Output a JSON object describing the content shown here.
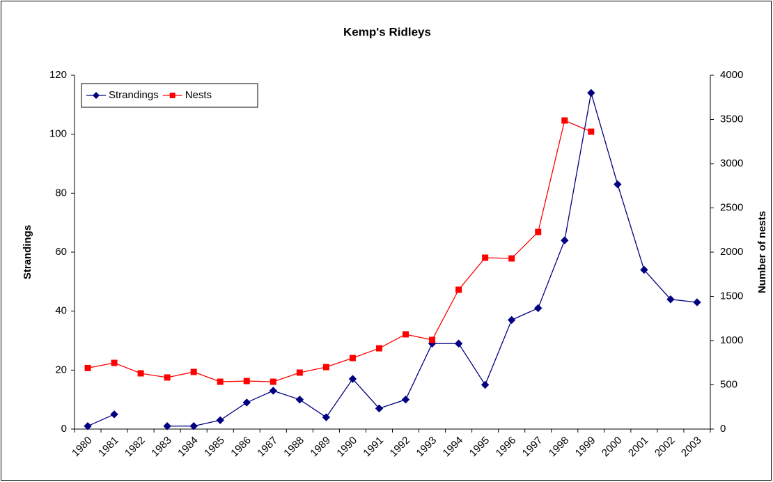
{
  "chart_data": {
    "type": "line",
    "title": "Kemp's Ridleys",
    "categories": [
      "1980",
      "1981",
      "1982",
      "1983",
      "1984",
      "1985",
      "1986",
      "1987",
      "1988",
      "1989",
      "1990",
      "1991",
      "1992",
      "1993",
      "1994",
      "1995",
      "1996",
      "1997",
      "1998",
      "1999",
      "2000",
      "2001",
      "2002",
      "2003"
    ],
    "y_label": "Strandings",
    "y2_label": "Number of nests",
    "ylim": [
      0,
      120
    ],
    "yticks": [
      0,
      20,
      40,
      60,
      80,
      100,
      120
    ],
    "y2lim": [
      0,
      4000
    ],
    "y2ticks": [
      0,
      500,
      1000,
      1500,
      2000,
      2500,
      3000,
      3500,
      4000
    ],
    "legend": "upper left",
    "series": [
      {
        "name": "Strandings",
        "color": "#000080",
        "marker": "diamond",
        "values": [
          1,
          5,
          null,
          1,
          1,
          3,
          9,
          13,
          10,
          4,
          17,
          7,
          10,
          29,
          29,
          15,
          37,
          41,
          64,
          114,
          83,
          54,
          44,
          43
        ]
      },
      {
        "name": "Nests",
        "color": "#ff0000",
        "marker": "square",
        "axis": "y2",
        "values": [
          690,
          748,
          630,
          583,
          646,
          535,
          543,
          535,
          638,
          701,
          803,
          913,
          1071,
          1008,
          1575,
          1937,
          1929,
          2228,
          3488,
          3362,
          null,
          null,
          null,
          null
        ]
      }
    ]
  }
}
